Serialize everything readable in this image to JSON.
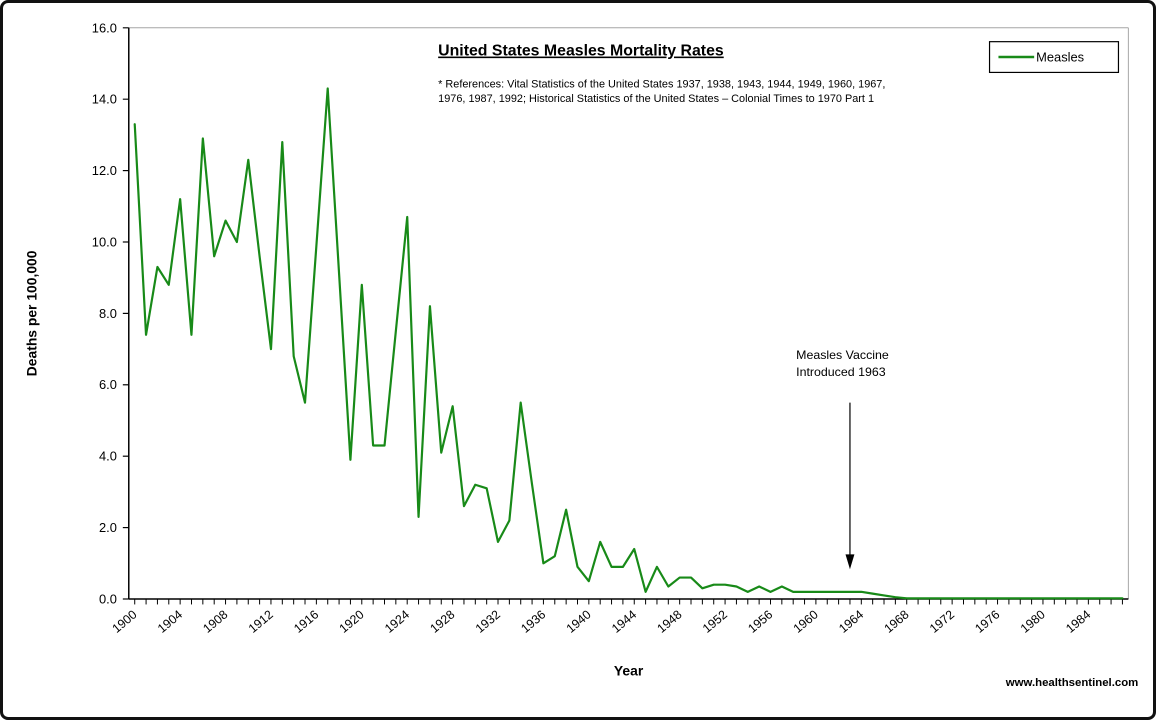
{
  "footer": {
    "watermark": "www.healthsentinel.com"
  },
  "chart_data": {
    "type": "line",
    "title": "United States Measles Mortality Rates",
    "references": [
      "* References: Vital Statistics of the United States 1937, 1938, 1943, 1944, 1949, 1960, 1967,",
      "1976, 1987, 1992; Historical Statistics of the United States – Colonial Times to 1970 Part 1"
    ],
    "xlabel": "Year",
    "ylabel": "Deaths per 100,000",
    "ylim": [
      0,
      16
    ],
    "ytick_step": 2,
    "xtick_label_every": 4,
    "x_start": 1900,
    "x_end": 1987,
    "grid": false,
    "legend": {
      "label": "Measles",
      "position": "top-right"
    },
    "line_color": "#188a18",
    "axis_color": "#000000",
    "plot_border_color": "#a6a6a6",
    "annotation": {
      "line1": "Measles Vaccine",
      "line2": "Introduced 1963",
      "arrow_year": 1963
    },
    "series": [
      {
        "name": "Measles",
        "years": [
          1900,
          1901,
          1902,
          1903,
          1904,
          1905,
          1906,
          1907,
          1908,
          1909,
          1910,
          1911,
          1912,
          1913,
          1914,
          1915,
          1916,
          1917,
          1918,
          1919,
          1920,
          1921,
          1922,
          1923,
          1924,
          1925,
          1926,
          1927,
          1928,
          1929,
          1930,
          1931,
          1932,
          1933,
          1934,
          1935,
          1936,
          1937,
          1938,
          1939,
          1940,
          1941,
          1942,
          1943,
          1944,
          1945,
          1946,
          1947,
          1948,
          1949,
          1950,
          1951,
          1952,
          1953,
          1954,
          1955,
          1956,
          1957,
          1958,
          1959,
          1960,
          1961,
          1962,
          1963,
          1964,
          1965,
          1966,
          1967,
          1968,
          1969,
          1970,
          1971,
          1972,
          1973,
          1974,
          1975,
          1976,
          1977,
          1978,
          1979,
          1980,
          1981,
          1982,
          1983,
          1984,
          1985,
          1986,
          1987
        ],
        "values": [
          13.3,
          7.4,
          9.3,
          8.8,
          11.2,
          7.4,
          12.9,
          9.6,
          10.6,
          10.0,
          12.3,
          9.6,
          7.0,
          12.8,
          6.8,
          5.5,
          9.9,
          14.3,
          9.1,
          3.9,
          8.8,
          4.3,
          4.3,
          7.5,
          10.7,
          2.3,
          8.2,
          4.1,
          5.4,
          2.6,
          3.2,
          3.1,
          1.6,
          2.2,
          5.5,
          3.2,
          1.0,
          1.2,
          2.5,
          0.9,
          0.5,
          1.6,
          0.9,
          0.9,
          1.4,
          0.2,
          0.9,
          0.35,
          0.6,
          0.6,
          0.3,
          0.4,
          0.4,
          0.35,
          0.2,
          0.35,
          0.2,
          0.35,
          0.2,
          0.2,
          0.2,
          0.2,
          0.2,
          0.2,
          0.2,
          0.15,
          0.1,
          0.05,
          0.02,
          0.02,
          0.02,
          0.02,
          0.02,
          0.02,
          0.02,
          0.02,
          0.02,
          0.02,
          0.02,
          0.02,
          0.02,
          0.02,
          0.02,
          0.02,
          0.02,
          0.02,
          0.02,
          0.02
        ]
      }
    ]
  }
}
